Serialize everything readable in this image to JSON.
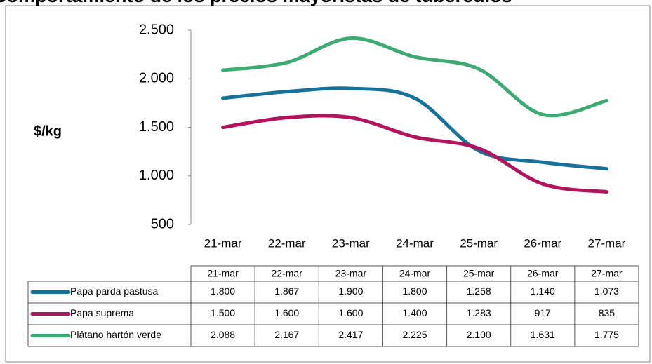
{
  "chart_data": {
    "type": "line",
    "title": "Comportamiento de los precios mayoristas de tubérculos",
    "y_label": "$/kg",
    "categories": [
      "21-mar",
      "22-mar",
      "23-mar",
      "24-mar",
      "25-mar",
      "26-mar",
      "27-mar"
    ],
    "ylim": [
      500,
      2500
    ],
    "yticks": [
      500,
      {
        "value": 1000,
        "label": "1.000"
      },
      {
        "value": 1500,
        "label": "1.500"
      },
      {
        "value": 2000,
        "label": "2.000"
      },
      {
        "value": 2500,
        "label": "2.500"
      }
    ],
    "series": [
      {
        "name": "Papa parda pastusa",
        "color": "#17729b",
        "values": [
          1800,
          1867,
          1900,
          1800,
          1258,
          1140,
          1073
        ],
        "value_labels": [
          "1.800",
          "1.867",
          "1.900",
          "1.800",
          "1.258",
          "1.140",
          "1.073"
        ]
      },
      {
        "name": "Papa suprema",
        "color": "#b3125c",
        "values": [
          1500,
          1600,
          1600,
          1400,
          1283,
          917,
          835
        ],
        "value_labels": [
          "1.500",
          "1.600",
          "1.600",
          "1.400",
          "1.283",
          "917",
          "835"
        ]
      },
      {
        "name": "Plátano hartón verde",
        "color": "#3daa74",
        "values": [
          2088,
          2167,
          2417,
          2225,
          2100,
          1631,
          1775
        ],
        "value_labels": [
          "2.088",
          "2.167",
          "2.417",
          "2.225",
          "2.100",
          "1.631",
          "1.775"
        ]
      }
    ]
  }
}
